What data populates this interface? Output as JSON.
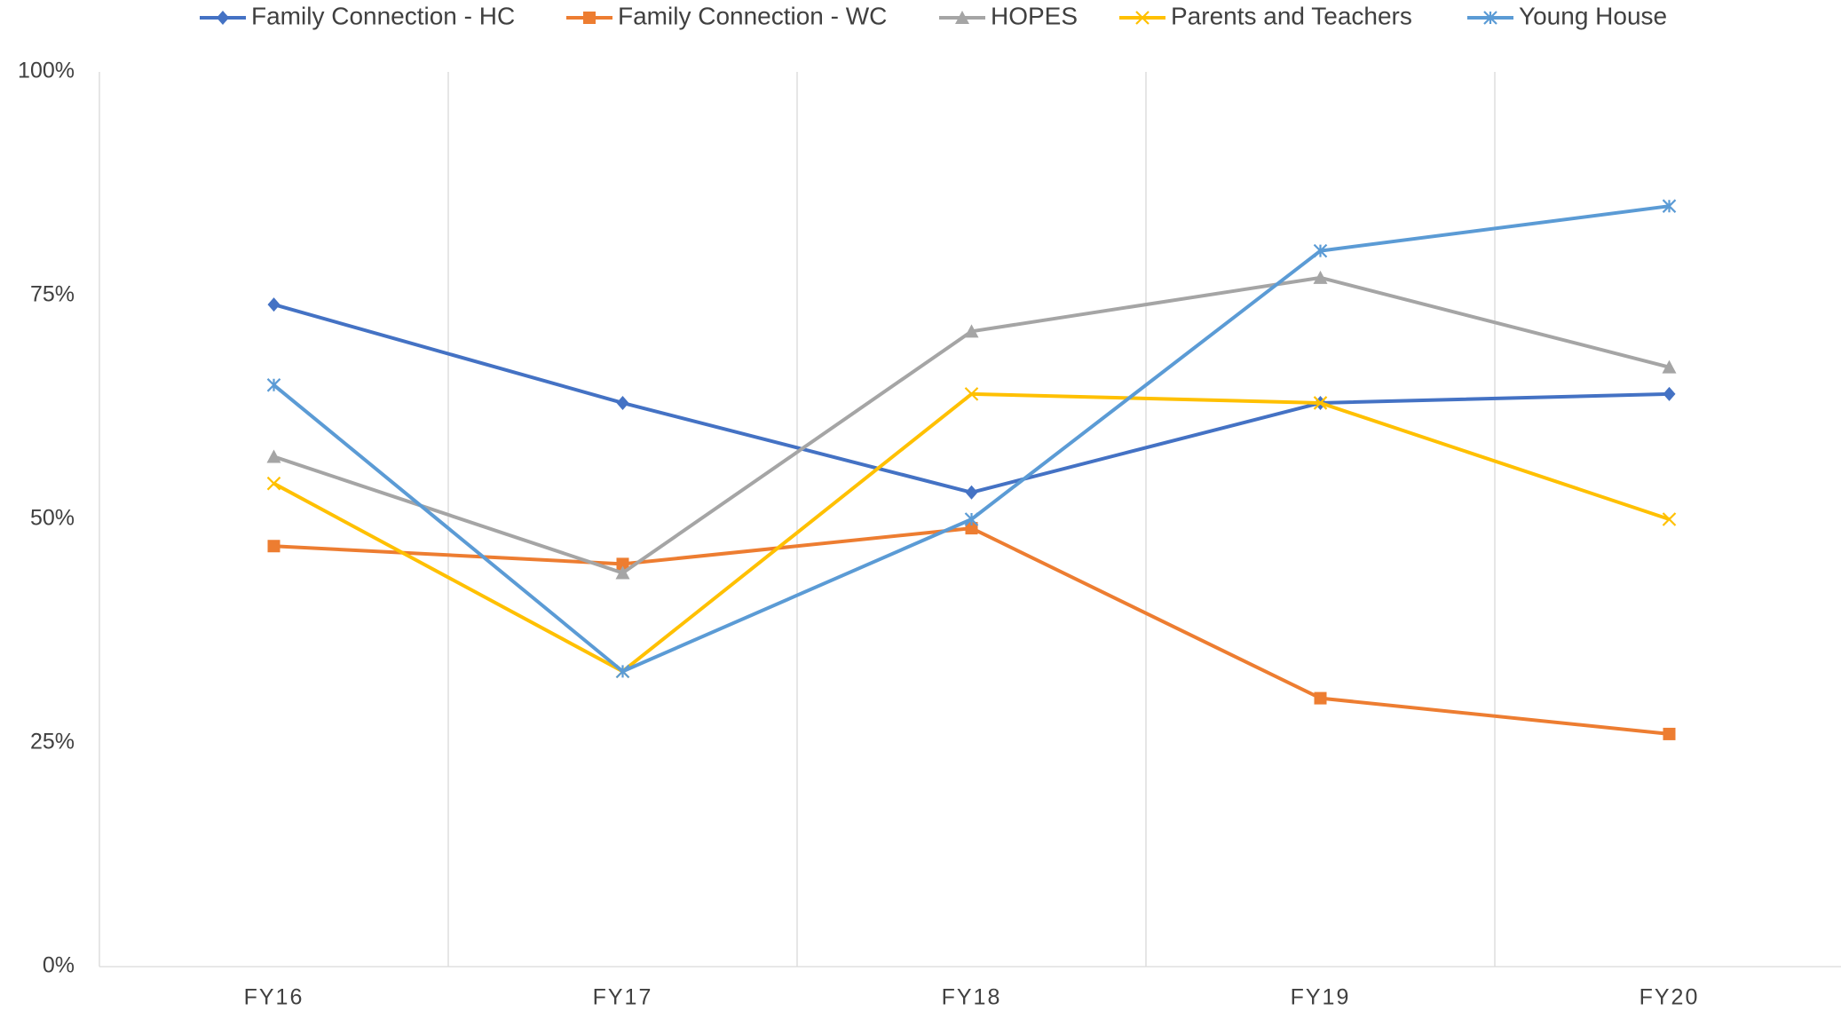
{
  "chart_data": {
    "type": "line",
    "categories": [
      "FY16",
      "FY17",
      "FY18",
      "FY19",
      "FY20"
    ],
    "series": [
      {
        "name": "Family Connection - HC",
        "color": "#4472c4",
        "marker": "diamond",
        "values": [
          74,
          63,
          53,
          63,
          64
        ]
      },
      {
        "name": "Family Connection - WC",
        "color": "#ed7d31",
        "marker": "square",
        "values": [
          47,
          45,
          49,
          30,
          26
        ]
      },
      {
        "name": "HOPES",
        "color": "#a5a5a5",
        "marker": "triangle",
        "values": [
          57,
          44,
          71,
          77,
          67
        ]
      },
      {
        "name": "Parents and Teachers",
        "color": "#ffc000",
        "marker": "x",
        "values": [
          54,
          33,
          64,
          63,
          50
        ]
      },
      {
        "name": "Young House",
        "color": "#5b9bd5",
        "marker": "star",
        "values": [
          65,
          33,
          50,
          80,
          85
        ]
      }
    ],
    "ylim": [
      0,
      100
    ],
    "yticks": [
      {
        "value": 0,
        "label": "0%"
      },
      {
        "value": 25,
        "label": "25%"
      },
      {
        "value": 50,
        "label": "50%"
      },
      {
        "value": 75,
        "label": "75%"
      },
      {
        "value": 100,
        "label": "100%"
      }
    ],
    "legend": "top"
  }
}
